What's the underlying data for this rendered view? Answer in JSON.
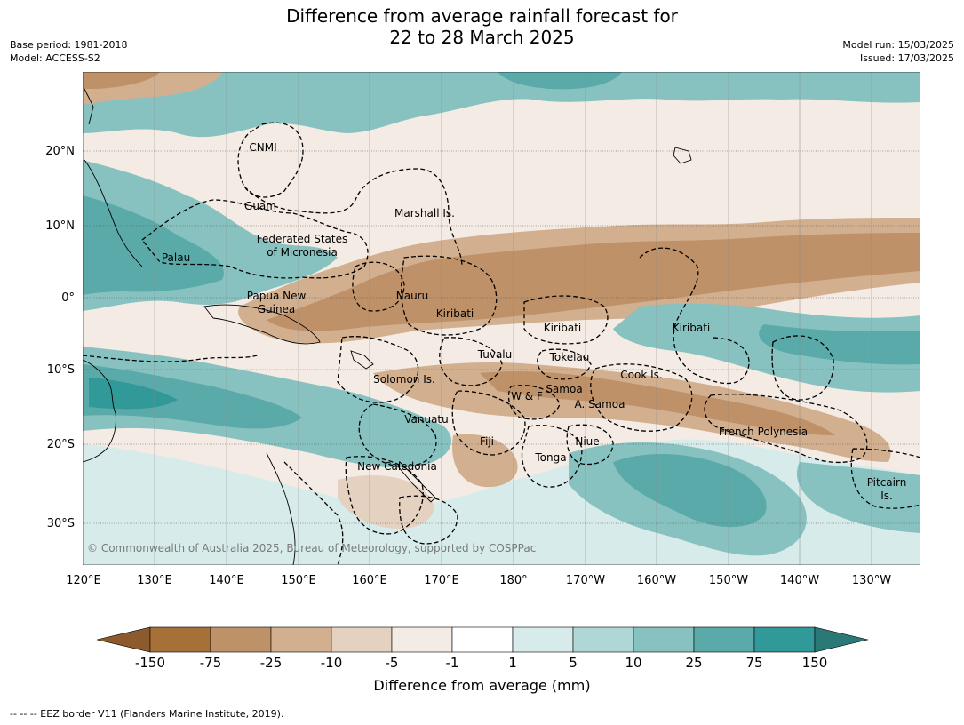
{
  "title_line1": "Difference from average rainfall forecast for",
  "title_line2": "22 to 28 March 2025",
  "base_period": "Base period: 1981-2018",
  "model": "Model: ACCESS-S2",
  "model_run": "Model run: 15/03/2025",
  "issued": "Issued: 17/03/2025",
  "copyright": "© Commonwealth of Australia 2025, Bureau of Meteorology, supported by COSPPac",
  "footer": "--  --  -- EEZ border V11 (Flanders Marine Institute, 2019).",
  "lon_ticks": [
    "120°E",
    "130°E",
    "140°E",
    "150°E",
    "160°E",
    "170°E",
    "180°",
    "170°W",
    "160°W",
    "150°W",
    "140°W",
    "130°W"
  ],
  "lat_ticks": [
    "20°N",
    "10°N",
    "0°",
    "10°S",
    "20°S",
    "30°S"
  ],
  "colorbar": {
    "title": "Difference from average (mm)",
    "ticks": [
      "-150",
      "-75",
      "-25",
      "-10",
      "-5",
      "-1",
      "1",
      "5",
      "10",
      "25",
      "75",
      "150"
    ],
    "colors": [
      "#a87039",
      "#be9168",
      "#d2af8e",
      "#e5d1c0",
      "#f4ebe4",
      "#ffffff",
      "#d6ebea",
      "#afd7d6",
      "#87c2c1",
      "#5aaaaa",
      "#329999"
    ],
    "extend_low": "#8c5a2d",
    "extend_high": "#2a7977"
  },
  "places": [
    {
      "name": "CNMI"
    },
    {
      "name": "Guam"
    },
    {
      "name": "Marshall Is."
    },
    {
      "name": "Federated States"
    },
    {
      "name": "of Micronesia"
    },
    {
      "name": "Palau"
    },
    {
      "name": "Papua New"
    },
    {
      "name": "Guinea"
    },
    {
      "name": "Nauru"
    },
    {
      "name": "Kiribati"
    },
    {
      "name": "Kiribati"
    },
    {
      "name": "Kiribati"
    },
    {
      "name": "Tuvalu"
    },
    {
      "name": "Tokelau"
    },
    {
      "name": "Solomon Is."
    },
    {
      "name": "Cook Is."
    },
    {
      "name": "Samoa"
    },
    {
      "name": "W & F"
    },
    {
      "name": "A. Samoa"
    },
    {
      "name": "Vanuatu"
    },
    {
      "name": "Fiji"
    },
    {
      "name": "Niue"
    },
    {
      "name": "Tonga"
    },
    {
      "name": "French Polynesia"
    },
    {
      "name": "New Caledonia"
    },
    {
      "name": "Pitcairn"
    },
    {
      "name": "Is."
    }
  ]
}
